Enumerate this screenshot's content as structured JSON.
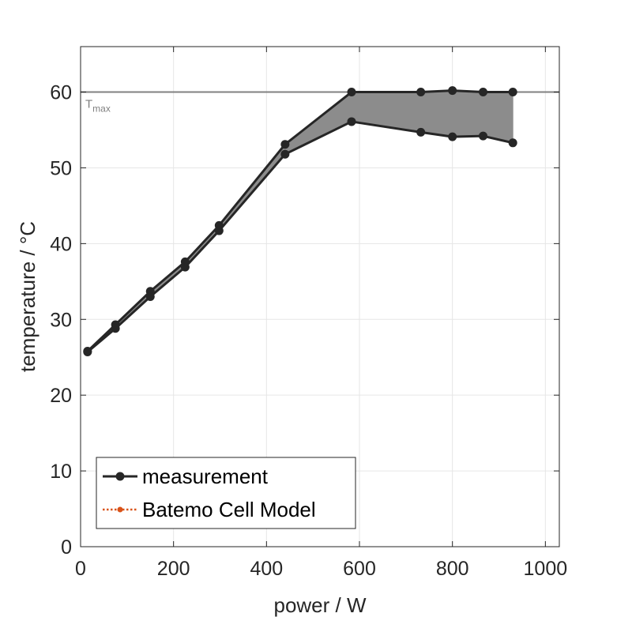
{
  "chart_data": {
    "type": "line",
    "xlabel": "power / W",
    "ylabel": "temperature / °C",
    "xlim": [
      0,
      1030
    ],
    "ylim": [
      0,
      66
    ],
    "xticks": [
      0,
      200,
      400,
      600,
      800,
      1000
    ],
    "yticks": [
      0,
      10,
      20,
      30,
      40,
      50,
      60
    ],
    "grid": true,
    "legend_position": "bottom-left",
    "legend": [
      "measurement",
      "Batemo Cell Model"
    ],
    "annotations": [
      {
        "text": "T",
        "subscript": "max",
        "type": "horizontal-line",
        "y": 60
      }
    ],
    "series": [
      {
        "name": "measurement",
        "color": "#262626",
        "marker": "circle",
        "x": [
          15,
          75,
          150,
          225,
          298,
          440,
          583,
          732,
          800,
          866,
          930
        ],
        "y_upper": [
          25.8,
          29.3,
          33.7,
          37.6,
          42.4,
          53.1,
          60.0,
          60.0,
          60.2,
          60.0,
          60.0
        ],
        "y_lower": [
          25.7,
          28.8,
          33.0,
          36.9,
          41.7,
          51.8,
          56.1,
          54.7,
          54.1,
          54.2,
          53.3
        ]
      },
      {
        "name": "Batemo Cell Model",
        "color": "#D95319",
        "marker": "circle",
        "linestyle": "dotted",
        "x": [],
        "y": []
      }
    ],
    "band_color": "#8c8c8c",
    "threshold_color": "#808080"
  }
}
